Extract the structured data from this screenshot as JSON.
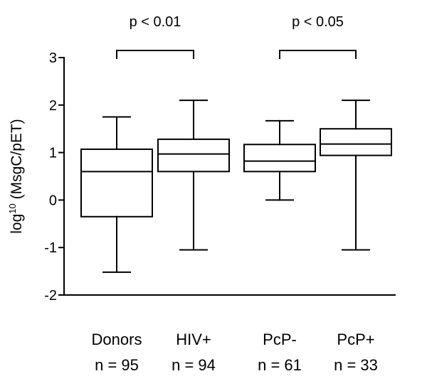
{
  "chart_data": {
    "type": "box",
    "ylabel": "log10 (MsgC/pET)",
    "ylim": [
      -2,
      3
    ],
    "yticks": [
      "3",
      "2",
      "1",
      "0",
      "-1",
      "-2"
    ],
    "grid": false,
    "groups": [
      {
        "label": "Donors",
        "n_label": "n = 95",
        "whisker_low": -1.52,
        "q1": -0.35,
        "median": 0.6,
        "q3": 1.07,
        "whisker_high": 1.75
      },
      {
        "label": "HIV+",
        "n_label": "n = 94",
        "whisker_low": -1.05,
        "q1": 0.6,
        "median": 0.97,
        "q3": 1.28,
        "whisker_high": 2.1
      },
      {
        "label": "PcP-",
        "n_label": "n = 61",
        "whisker_low": 0.0,
        "q1": 0.6,
        "median": 0.82,
        "q3": 1.17,
        "whisker_high": 1.67
      },
      {
        "label": "PcP+",
        "n_label": "n = 33",
        "whisker_low": -1.05,
        "q1": 0.94,
        "median": 1.18,
        "q3": 1.5,
        "whisker_high": 2.1
      }
    ],
    "annotations": [
      {
        "text": "p < 0.01",
        "from_group": 0,
        "to_group": 1
      },
      {
        "text": "p < 0.05",
        "from_group": 2,
        "to_group": 3
      }
    ]
  }
}
